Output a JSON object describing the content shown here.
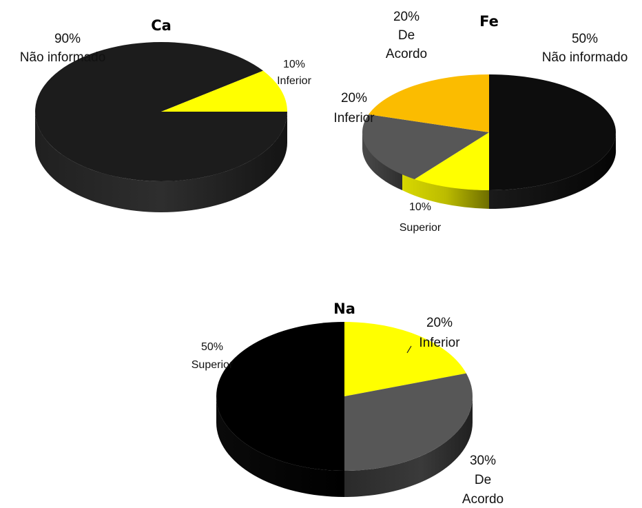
{
  "chart_data": [
    {
      "type": "pie",
      "title": "Ca",
      "slices": [
        {
          "name": "Não informado",
          "value": 90,
          "label_pct": "90%",
          "color": "#1c1c1c"
        },
        {
          "name": "Inferior",
          "value": 10,
          "label_pct": "10%",
          "color": "#ffff00"
        }
      ]
    },
    {
      "type": "pie",
      "title": "Fe",
      "slices": [
        {
          "name": "Não informado",
          "value": 50,
          "label_pct": "50%",
          "color": "#0d0d0d"
        },
        {
          "name": "Superior",
          "value": 10,
          "label_pct": "10%",
          "color": "#ffff00"
        },
        {
          "name": "Inferior",
          "value": 20,
          "label_pct": "20%",
          "color": "#575757"
        },
        {
          "name": "De Acordo",
          "value": 20,
          "label_pct": "20%",
          "color": "#fbbc00"
        }
      ]
    },
    {
      "type": "pie",
      "title": "Na",
      "slices": [
        {
          "name": "Inferior",
          "value": 20,
          "label_pct": "20%",
          "color": "#ffff00"
        },
        {
          "name": "De Acordo",
          "value": 30,
          "label_pct": "30%",
          "color": "#575757"
        },
        {
          "name": "Superior",
          "value": 50,
          "label_pct": "50%",
          "color": "#000000"
        }
      ]
    }
  ]
}
